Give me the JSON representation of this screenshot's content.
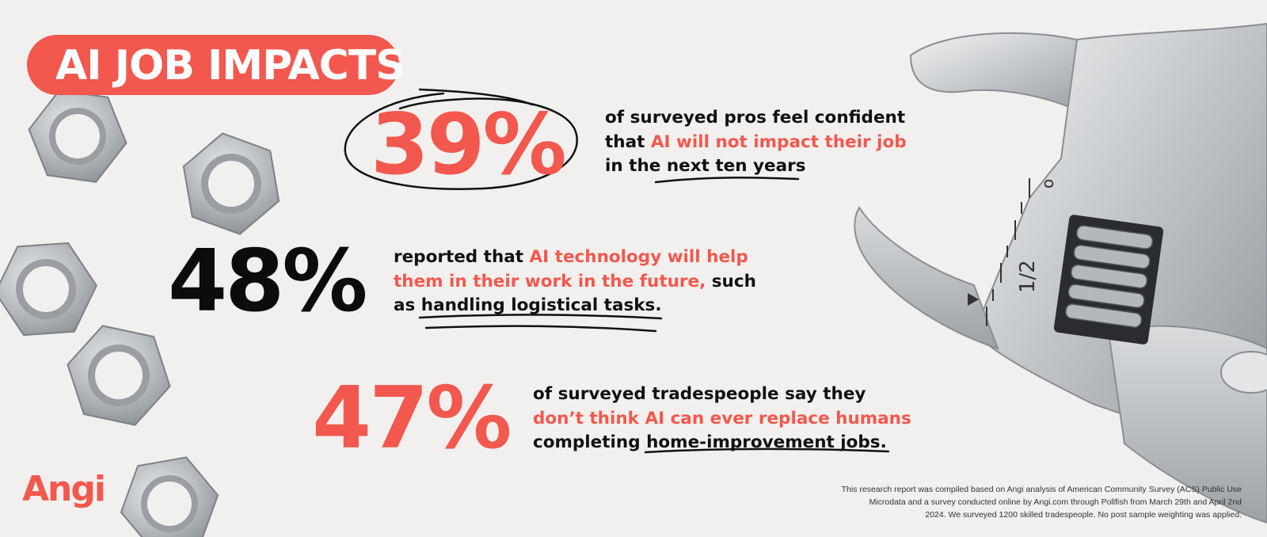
{
  "title": "AI JOB IMPACTS",
  "stats": [
    {
      "value": "39%",
      "lines": [
        [
          {
            "text": "of surveyed pros feel confident",
            "highlight": false
          }
        ],
        [
          {
            "text": "that ",
            "highlight": false
          },
          {
            "text": "AI will not impact their job",
            "highlight": true
          }
        ],
        [
          {
            "text": "in the ",
            "highlight": false
          },
          {
            "text": "next ten years",
            "highlight": false
          }
        ]
      ]
    },
    {
      "value": "48%",
      "lines": [
        [
          {
            "text": "reported that ",
            "highlight": false
          },
          {
            "text": "AI technology will help",
            "highlight": true
          }
        ],
        [
          {
            "text": "them in their work in the future,",
            "highlight": true
          },
          {
            "text": " such",
            "highlight": false
          }
        ],
        [
          {
            "text": "as ",
            "highlight": false
          },
          {
            "text": "handling logistical tasks",
            "highlight": false
          },
          {
            "text": ".",
            "highlight": false
          }
        ]
      ]
    },
    {
      "value": "47%",
      "lines": [
        [
          {
            "text": "of surveyed tradespeople say they",
            "highlight": false
          }
        ],
        [
          {
            "text": "don’t think AI can ever replace humans",
            "highlight": true
          }
        ],
        [
          {
            "text": "completing ",
            "highlight": false
          },
          {
            "text": "home-improvement jobs",
            "highlight": false
          },
          {
            "text": ".",
            "highlight": false
          }
        ]
      ]
    }
  ],
  "logo": "Angi",
  "wrench_marking": "1/2",
  "wrench_mark_o": "o",
  "footnote": [
    "This research report was compiled based on Angi analysis of American Community Survey (ACS) Public Use",
    "Microdata and a survey conducted online by Angi.com through Pollfish from March 29th and April 2nd",
    "2024. We surveyed 1200 skilled tradespeople. No post sample weighting was applied."
  ],
  "colors": {
    "accent": "#f2584e",
    "text": "#111111",
    "background": "#f1f0ee",
    "metal": "#b9bcc0"
  },
  "icons": [
    "hex-nut-icon",
    "wrench-icon",
    "ellipse-scribble-icon",
    "underline-scribble-icon"
  ]
}
